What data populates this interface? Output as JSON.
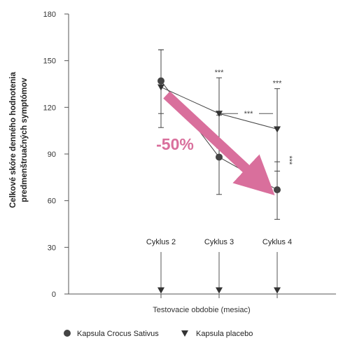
{
  "chart_data": {
    "type": "line",
    "ylabel_line1": "Celkové skóre denného hodnotenia",
    "ylabel_line2": "predmenštruačných symptómov",
    "xlabel": "Testovacie obdobie (mesiac)",
    "ylim": [
      0,
      180
    ],
    "yticks": [
      0,
      30,
      60,
      90,
      120,
      150,
      180
    ],
    "categories": [
      "Cyklus 2",
      "Cyklus 3",
      "Cyklus 4"
    ],
    "series": [
      {
        "name": "Kapsula Crocus Sativus",
        "marker": "circle",
        "values": [
          137,
          88,
          67
        ],
        "error_upper": [
          157,
          115,
          85
        ],
        "error_lower": [
          116,
          64,
          48
        ]
      },
      {
        "name": "Kapsula placebo",
        "marker": "triangle-down",
        "values": [
          133,
          116,
          106
        ],
        "error_upper": [
          157,
          139,
          132
        ],
        "error_lower": [
          107,
          94,
          79
        ]
      }
    ],
    "baseline_marker_value": 2,
    "significance": {
      "cycle3_top": "***",
      "cycle4_top": "***",
      "between_groups_cycle3": "***",
      "within_cycle4": "***"
    },
    "annotation": {
      "text": "-50%",
      "color": "#d96f9c"
    },
    "legend": {
      "position": "bottom-left"
    },
    "grid": false
  }
}
